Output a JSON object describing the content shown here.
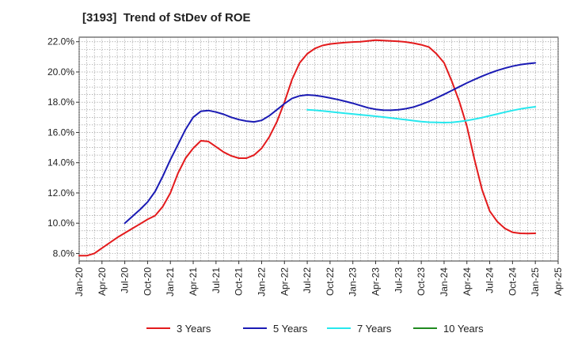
{
  "chart_data": {
    "type": "line",
    "title": "[3193]  Trend of StDev of ROE",
    "xlabel": "",
    "ylabel": "",
    "x_start": "2020-01",
    "x_end": "2025-04",
    "ylim": [
      7.5,
      22.3
    ],
    "y_ticks": [
      8.0,
      10.0,
      12.0,
      14.0,
      16.0,
      18.0,
      20.0,
      22.0
    ],
    "y_tick_labels": [
      "8.0%",
      "10.0%",
      "12.0%",
      "14.0%",
      "16.0%",
      "18.0%",
      "20.0%",
      "22.0%"
    ],
    "x_tick_labels": [
      "Jan-20",
      "Apr-20",
      "Jul-20",
      "Oct-20",
      "Jan-21",
      "Apr-21",
      "Jul-21",
      "Oct-21",
      "Jan-22",
      "Apr-22",
      "Jul-22",
      "Oct-22",
      "Jan-23",
      "Apr-23",
      "Jul-23",
      "Oct-23",
      "Jan-24",
      "Apr-24",
      "Jul-24",
      "Oct-24",
      "Jan-25",
      "Apr-25"
    ],
    "x_tick_dates": [
      "2020-01",
      "2020-04",
      "2020-07",
      "2020-10",
      "2021-01",
      "2021-04",
      "2021-07",
      "2021-10",
      "2022-01",
      "2022-04",
      "2022-07",
      "2022-10",
      "2023-01",
      "2023-04",
      "2023-07",
      "2023-10",
      "2024-01",
      "2024-04",
      "2024-07",
      "2024-10",
      "2025-01",
      "2025-04"
    ],
    "grid": true,
    "legend_position": "bottom",
    "series": [
      {
        "name": "3 Years",
        "color": "#e31a1c",
        "x": [
          "2020-01",
          "2020-02",
          "2020-03",
          "2020-04",
          "2020-05",
          "2020-06",
          "2020-07",
          "2020-08",
          "2020-09",
          "2020-10",
          "2020-11",
          "2020-12",
          "2021-01",
          "2021-02",
          "2021-03",
          "2021-04",
          "2021-05",
          "2021-06",
          "2021-07",
          "2021-08",
          "2021-09",
          "2021-10",
          "2021-11",
          "2021-12",
          "2022-01",
          "2022-02",
          "2022-03",
          "2022-04",
          "2022-05",
          "2022-06",
          "2022-07",
          "2022-08",
          "2022-09",
          "2022-10",
          "2022-11",
          "2022-12",
          "2023-01",
          "2023-02",
          "2023-03",
          "2023-04",
          "2023-05",
          "2023-06",
          "2023-07",
          "2023-08",
          "2023-09",
          "2023-10",
          "2023-11",
          "2023-12",
          "2024-01",
          "2024-02",
          "2024-03",
          "2024-04",
          "2024-05",
          "2024-06",
          "2024-07",
          "2024-08",
          "2024-09",
          "2024-10",
          "2024-11",
          "2024-12",
          "2025-01"
        ],
        "values": [
          7.85,
          7.85,
          8.0,
          8.35,
          8.7,
          9.05,
          9.35,
          9.65,
          9.95,
          10.25,
          10.5,
          11.1,
          12.0,
          13.3,
          14.3,
          14.95,
          15.45,
          15.4,
          15.05,
          14.7,
          14.45,
          14.3,
          14.3,
          14.5,
          14.95,
          15.7,
          16.7,
          18.0,
          19.5,
          20.6,
          21.2,
          21.55,
          21.75,
          21.85,
          21.9,
          21.95,
          21.98,
          22.0,
          22.05,
          22.1,
          22.08,
          22.05,
          22.03,
          21.98,
          21.9,
          21.8,
          21.65,
          21.2,
          20.6,
          19.4,
          18.05,
          16.4,
          14.2,
          12.2,
          10.8,
          10.1,
          9.65,
          9.4,
          9.33,
          9.32,
          9.33
        ]
      },
      {
        "name": "5 Years",
        "color": "#1a1ab4",
        "x": [
          "2020-07",
          "2020-08",
          "2020-09",
          "2020-10",
          "2020-11",
          "2020-12",
          "2021-01",
          "2021-02",
          "2021-03",
          "2021-04",
          "2021-05",
          "2021-06",
          "2021-07",
          "2021-08",
          "2021-09",
          "2021-10",
          "2021-11",
          "2021-12",
          "2022-01",
          "2022-02",
          "2022-03",
          "2022-04",
          "2022-05",
          "2022-06",
          "2022-07",
          "2022-08",
          "2022-09",
          "2022-10",
          "2022-11",
          "2022-12",
          "2023-01",
          "2023-02",
          "2023-03",
          "2023-04",
          "2023-05",
          "2023-06",
          "2023-07",
          "2023-08",
          "2023-09",
          "2023-10",
          "2023-11",
          "2023-12",
          "2024-01",
          "2024-02",
          "2024-03",
          "2024-04",
          "2024-05",
          "2024-06",
          "2024-07",
          "2024-08",
          "2024-09",
          "2024-10",
          "2024-11",
          "2024-12",
          "2025-01"
        ],
        "values": [
          10.0,
          10.45,
          10.9,
          11.4,
          12.1,
          13.1,
          14.2,
          15.2,
          16.2,
          17.0,
          17.4,
          17.45,
          17.35,
          17.2,
          17.0,
          16.85,
          16.75,
          16.7,
          16.8,
          17.1,
          17.5,
          17.9,
          18.25,
          18.42,
          18.48,
          18.45,
          18.38,
          18.28,
          18.18,
          18.06,
          17.93,
          17.78,
          17.63,
          17.53,
          17.48,
          17.47,
          17.5,
          17.57,
          17.68,
          17.85,
          18.05,
          18.28,
          18.52,
          18.77,
          19.02,
          19.27,
          19.5,
          19.72,
          19.92,
          20.1,
          20.25,
          20.38,
          20.48,
          20.55,
          20.6
        ]
      },
      {
        "name": "7 Years",
        "color": "#26e8ee",
        "x": [
          "2022-07",
          "2022-08",
          "2022-09",
          "2022-10",
          "2022-11",
          "2022-12",
          "2023-01",
          "2023-02",
          "2023-03",
          "2023-04",
          "2023-05",
          "2023-06",
          "2023-07",
          "2023-08",
          "2023-09",
          "2023-10",
          "2023-11",
          "2023-12",
          "2024-01",
          "2024-02",
          "2024-03",
          "2024-04",
          "2024-05",
          "2024-06",
          "2024-07",
          "2024-08",
          "2024-09",
          "2024-10",
          "2024-11",
          "2024-12",
          "2025-01"
        ],
        "values": [
          17.5,
          17.47,
          17.42,
          17.37,
          17.32,
          17.27,
          17.22,
          17.17,
          17.12,
          17.07,
          17.02,
          16.96,
          16.9,
          16.84,
          16.78,
          16.72,
          16.68,
          16.66,
          16.65,
          16.67,
          16.72,
          16.79,
          16.88,
          16.98,
          17.1,
          17.22,
          17.34,
          17.45,
          17.55,
          17.63,
          17.7
        ]
      },
      {
        "name": "10 Years",
        "color": "#1f8a1f",
        "x": [],
        "values": []
      }
    ]
  }
}
